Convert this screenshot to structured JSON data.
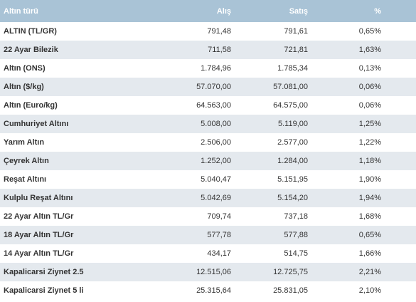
{
  "table": {
    "headers": [
      "Altın türü",
      "Alış",
      "Satış",
      "%"
    ],
    "rows": [
      [
        "ALTIN (TL/GR)",
        "791,48",
        "791,61",
        "0,65%"
      ],
      [
        "22 Ayar Bilezik",
        "711,58",
        "721,81",
        "1,63%"
      ],
      [
        "Altın (ONS)",
        "1.784,96",
        "1.785,34",
        "0,13%"
      ],
      [
        "Altın ($/kg)",
        "57.070,00",
        "57.081,00",
        "0,06%"
      ],
      [
        "Altın (Euro/kg)",
        "64.563,00",
        "64.575,00",
        "0,06%"
      ],
      [
        "Cumhuriyet Altını",
        "5.008,00",
        "5.119,00",
        "1,25%"
      ],
      [
        "Yarım Altın",
        "2.506,00",
        "2.577,00",
        "1,22%"
      ],
      [
        "Çeyrek Altın",
        "1.252,00",
        "1.284,00",
        "1,18%"
      ],
      [
        "Reşat Altını",
        "5.040,47",
        "5.151,95",
        "1,90%"
      ],
      [
        "Kulplu Reşat Altını",
        "5.042,69",
        "5.154,20",
        "1,94%"
      ],
      [
        "22 Ayar Altın TL/Gr",
        "709,74",
        "737,18",
        "1,68%"
      ],
      [
        "18 Ayar Altın TL/Gr",
        "577,78",
        "577,88",
        "0,65%"
      ],
      [
        "14 Ayar Altın TL/Gr",
        "434,17",
        "514,75",
        "1,66%"
      ],
      [
        "Kapalicarsi Ziynet 2.5",
        "12.515,06",
        "12.725,75",
        "2,21%"
      ],
      [
        "Kapalicarsi Ziynet 5 li",
        "25.315,64",
        "25.831,05",
        "2,10%"
      ]
    ]
  },
  "colors": {
    "header_bg": "#a9c3d6",
    "stripe_bg": "#e4e9ee"
  }
}
